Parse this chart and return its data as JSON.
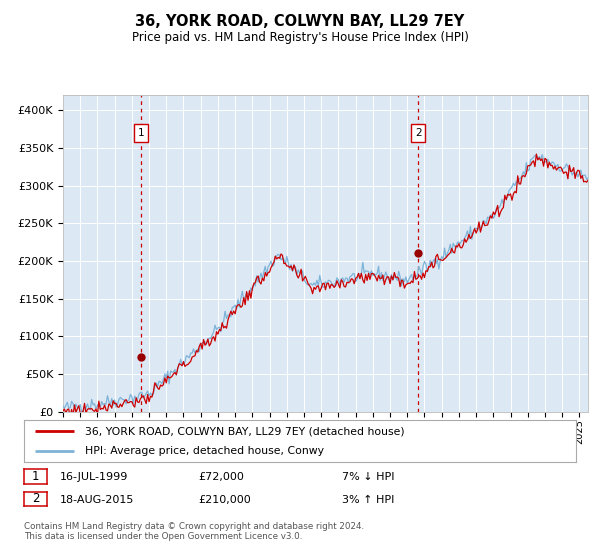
{
  "title": "36, YORK ROAD, COLWYN BAY, LL29 7EY",
  "subtitle": "Price paid vs. HM Land Registry's House Price Index (HPI)",
  "legend_line1": "36, YORK ROAD, COLWYN BAY, LL29 7EY (detached house)",
  "legend_line2": "HPI: Average price, detached house, Conwy",
  "footnote": "Contains HM Land Registry data © Crown copyright and database right 2024.\nThis data is licensed under the Open Government Licence v3.0.",
  "sale1_date": "16-JUL-1999",
  "sale1_price": 72000,
  "sale1_label": "7% ↓ HPI",
  "sale2_date": "18-AUG-2015",
  "sale2_price": 210000,
  "sale2_label": "3% ↑ HPI",
  "hpi_color": "#7eb3d8",
  "price_color": "#cc0000",
  "dot_color": "#990000",
  "bg_color": "#dce9f5",
  "grid_color": "#ffffff",
  "vline_color": "#cc0000",
  "ylim_min": 0,
  "ylim_max": 420000,
  "yticks": [
    0,
    50000,
    100000,
    150000,
    200000,
    250000,
    300000,
    350000,
    400000
  ],
  "ytick_labels": [
    "£0",
    "£50K",
    "£100K",
    "£150K",
    "£200K",
    "£250K",
    "£300K",
    "£350K",
    "£400K"
  ],
  "sale1_x": 1999.54,
  "sale2_x": 2015.63,
  "xmin": 1995.0,
  "xmax": 2025.5
}
